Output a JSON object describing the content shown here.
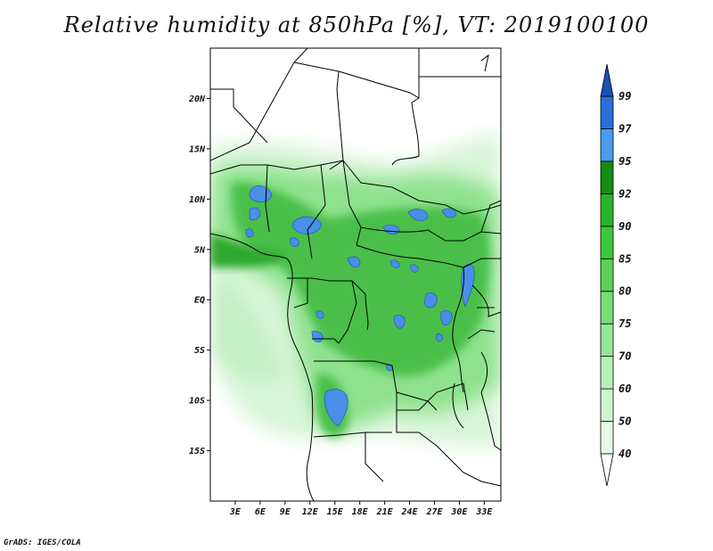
{
  "title": "Relative humidity at 850hPa [%], VT: 2019100100",
  "credit": "GrADS: IGES/COLA",
  "map": {
    "lon_range": [
      0,
      35
    ],
    "lat_range": [
      -20,
      25
    ],
    "lat_ticks": [
      {
        "value": 20,
        "label": "20N"
      },
      {
        "value": 15,
        "label": "15N"
      },
      {
        "value": 10,
        "label": "10N"
      },
      {
        "value": 5,
        "label": "5N"
      },
      {
        "value": 0,
        "label": "EQ"
      },
      {
        "value": -5,
        "label": "5S"
      },
      {
        "value": -10,
        "label": "10S"
      },
      {
        "value": -15,
        "label": "15S"
      }
    ],
    "lon_ticks": [
      {
        "value": 3,
        "label": "3E"
      },
      {
        "value": 6,
        "label": "6E"
      },
      {
        "value": 9,
        "label": "9E"
      },
      {
        "value": 12,
        "label": "12E"
      },
      {
        "value": 15,
        "label": "15E"
      },
      {
        "value": 18,
        "label": "18E"
      },
      {
        "value": 21,
        "label": "21E"
      },
      {
        "value": 24,
        "label": "24E"
      },
      {
        "value": 27,
        "label": "27E"
      },
      {
        "value": 30,
        "label": "30E"
      },
      {
        "value": 33,
        "label": "33E"
      }
    ]
  },
  "colorbar": {
    "levels": [
      "40",
      "50",
      "60",
      "70",
      "75",
      "80",
      "85",
      "90",
      "92",
      "95",
      "97",
      "99"
    ],
    "colors": [
      "#ffffff",
      "#e6fae6",
      "#cdf5cd",
      "#b4f0b4",
      "#96e696",
      "#78dc78",
      "#5ad25a",
      "#3cc83c",
      "#28b428",
      "#148c14",
      "#4a9aee",
      "#2a70d8",
      "#1a50b8"
    ]
  },
  "colors": {
    "green_light": "#d8f5d8",
    "green_mid": "#7ede7e",
    "green_dark": "#2fa82f",
    "blue": "#4a8ee8",
    "border": "#000000"
  }
}
